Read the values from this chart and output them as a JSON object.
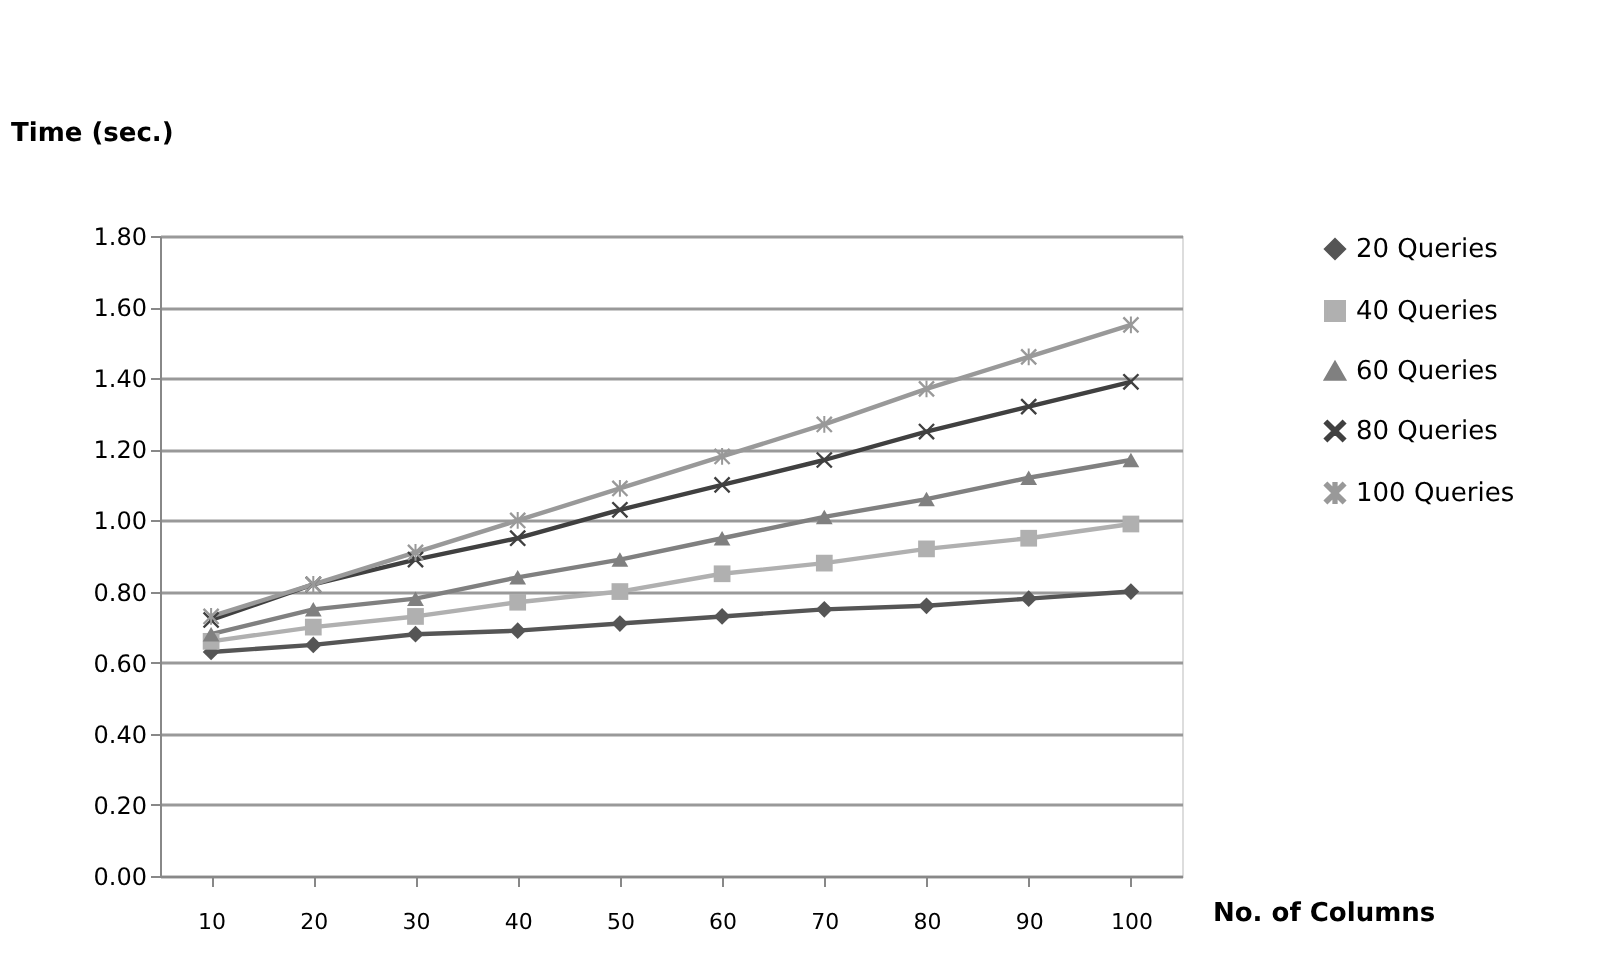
{
  "chart_data": {
    "type": "line",
    "ylabel": "Time (sec.)",
    "xlabel": "No. of Columns",
    "categories": [
      "10",
      "20",
      "30",
      "40",
      "50",
      "60",
      "70",
      "80",
      "90",
      "100"
    ],
    "ylim": [
      0,
      1.8
    ],
    "yticks": [
      {
        "value": 0,
        "label": "0.00"
      },
      {
        "value": 0.2,
        "label": "0.20"
      },
      {
        "value": 0.4,
        "label": "0.40"
      },
      {
        "value": 0.6,
        "label": "0.60"
      },
      {
        "value": 0.8,
        "label": "0.80"
      },
      {
        "value": 1.0,
        "label": "1.00"
      },
      {
        "value": 1.2,
        "label": "1.20"
      },
      {
        "value": 1.4,
        "label": "1.40"
      },
      {
        "value": 1.6,
        "label": "1.60"
      },
      {
        "value": 1.8,
        "label": "1.80"
      }
    ],
    "grid": "y",
    "legend": "right",
    "line_style": "solid",
    "series": [
      {
        "name": "20 Queries",
        "color": "#555555",
        "marker": "diamond",
        "values": [
          0.63,
          0.65,
          0.68,
          0.69,
          0.71,
          0.73,
          0.75,
          0.76,
          0.78,
          0.8
        ]
      },
      {
        "name": "40 Queries",
        "color": "#b0b0b0",
        "marker": "square",
        "values": [
          0.66,
          0.7,
          0.73,
          0.77,
          0.8,
          0.85,
          0.88,
          0.92,
          0.95,
          0.99
        ]
      },
      {
        "name": "60 Queries",
        "color": "#808080",
        "marker": "triangle",
        "values": [
          0.68,
          0.75,
          0.78,
          0.84,
          0.89,
          0.95,
          1.01,
          1.06,
          1.12,
          1.17
        ]
      },
      {
        "name": "80 Queries",
        "color": "#404040",
        "marker": "cross",
        "values": [
          0.72,
          0.82,
          0.89,
          0.95,
          1.03,
          1.1,
          1.17,
          1.25,
          1.32,
          1.39
        ]
      },
      {
        "name": "100 Queries",
        "color": "#999999",
        "marker": "star",
        "values": [
          0.73,
          0.82,
          0.91,
          1.0,
          1.09,
          1.18,
          1.27,
          1.37,
          1.46,
          1.55
        ]
      }
    ]
  }
}
